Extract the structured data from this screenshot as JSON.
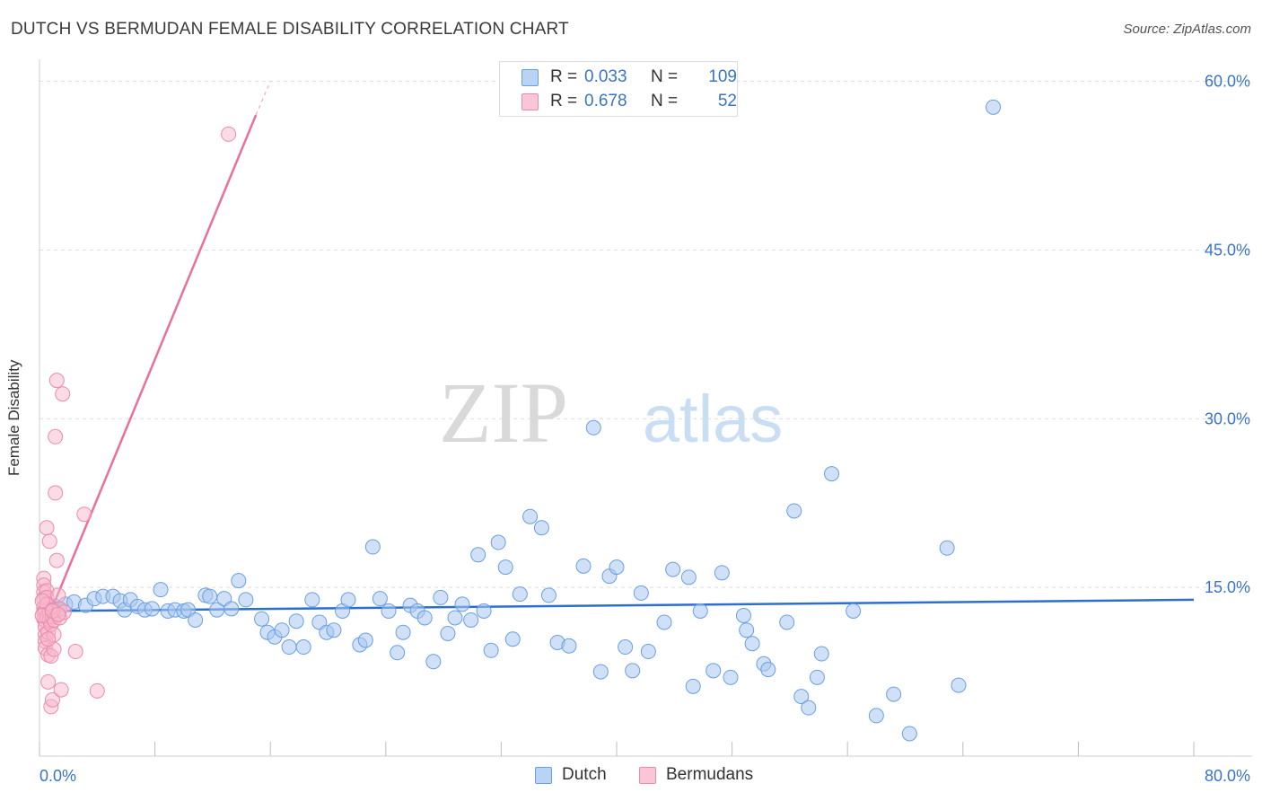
{
  "title": "DUTCH VS BERMUDAN FEMALE DISABILITY CORRELATION CHART",
  "source": "Source: ZipAtlas.com",
  "watermark": {
    "part1": "ZIP",
    "part2": "atlas"
  },
  "colors": {
    "dutch_fill": "#a9c9f0",
    "dutch_stroke": "#6a9fe0",
    "dutch_line": "#2d6fd0",
    "bermudan_fill": "#f7b8cb",
    "bermudan_stroke": "#ec8aab",
    "bermudan_line": "#e8709a",
    "tick_label": "#3a74c9",
    "grid": "#dddddd"
  },
  "legend_top": [
    {
      "r_label": "R =",
      "r_value": "0.033",
      "n_label": "N =",
      "n_value": "109"
    },
    {
      "r_label": "R =",
      "r_value": "0.678",
      "n_label": "N =",
      "n_value": "52"
    }
  ],
  "legend_bottom": [
    "Dutch",
    "Bermudans"
  ],
  "chart_data": {
    "type": "scatter",
    "title": "DUTCH VS BERMUDAN FEMALE DISABILITY CORRELATION CHART",
    "xlabel": "",
    "ylabel": "Female Disability",
    "xlim": [
      0,
      80
    ],
    "ylim": [
      0,
      61
    ],
    "x_tick_labels": [
      "0.0%",
      "80.0%"
    ],
    "y_ticks": [
      15,
      30,
      45,
      60
    ],
    "y_tick_labels": [
      "15.0%",
      "30.0%",
      "45.0%",
      "60.0%"
    ],
    "grid": true,
    "legend_position": "top-center",
    "series": [
      {
        "name": "Dutch",
        "r": 0.033,
        "n": 109,
        "trend": {
          "x": [
            0.5,
            80
          ],
          "y": [
            12.9,
            13.9
          ]
        },
        "points": [
          [
            0.5,
            13.5
          ],
          [
            0.7,
            13.0
          ],
          [
            0.9,
            12.7
          ],
          [
            1.1,
            13.3
          ],
          [
            1.4,
            13.0
          ],
          [
            1.8,
            13.5
          ],
          [
            2.4,
            13.7
          ],
          [
            3.2,
            13.4
          ],
          [
            3.8,
            14.0
          ],
          [
            4.4,
            14.2
          ],
          [
            5.1,
            14.2
          ],
          [
            5.6,
            13.8
          ],
          [
            5.9,
            13.0
          ],
          [
            6.3,
            13.9
          ],
          [
            6.8,
            13.3
          ],
          [
            7.3,
            13.0
          ],
          [
            7.8,
            13.1
          ],
          [
            8.4,
            14.8
          ],
          [
            8.9,
            12.9
          ],
          [
            9.4,
            13.0
          ],
          [
            10.0,
            12.9
          ],
          [
            10.3,
            13.0
          ],
          [
            10.8,
            12.1
          ],
          [
            11.5,
            14.3
          ],
          [
            11.8,
            14.2
          ],
          [
            12.3,
            13.0
          ],
          [
            12.8,
            14.0
          ],
          [
            13.3,
            13.1
          ],
          [
            13.8,
            15.6
          ],
          [
            14.3,
            13.9
          ],
          [
            15.4,
            12.2
          ],
          [
            15.8,
            11.0
          ],
          [
            16.3,
            10.6
          ],
          [
            16.8,
            11.2
          ],
          [
            17.3,
            9.7
          ],
          [
            17.8,
            12.0
          ],
          [
            18.3,
            9.7
          ],
          [
            18.9,
            13.9
          ],
          [
            19.4,
            11.9
          ],
          [
            19.9,
            11.0
          ],
          [
            20.4,
            11.2
          ],
          [
            21.0,
            12.9
          ],
          [
            21.4,
            13.9
          ],
          [
            22.2,
            9.9
          ],
          [
            22.6,
            10.3
          ],
          [
            23.1,
            18.6
          ],
          [
            23.6,
            14.0
          ],
          [
            24.2,
            12.9
          ],
          [
            24.8,
            9.2
          ],
          [
            25.2,
            11.0
          ],
          [
            25.7,
            13.4
          ],
          [
            26.2,
            12.9
          ],
          [
            26.7,
            12.3
          ],
          [
            27.3,
            8.4
          ],
          [
            27.8,
            14.1
          ],
          [
            28.3,
            10.9
          ],
          [
            28.8,
            12.3
          ],
          [
            29.3,
            13.5
          ],
          [
            29.9,
            12.1
          ],
          [
            30.4,
            17.9
          ],
          [
            30.8,
            12.9
          ],
          [
            31.3,
            9.4
          ],
          [
            31.8,
            19.0
          ],
          [
            32.3,
            16.8
          ],
          [
            32.8,
            10.4
          ],
          [
            33.3,
            14.4
          ],
          [
            34.0,
            21.3
          ],
          [
            34.8,
            20.3
          ],
          [
            35.3,
            14.3
          ],
          [
            35.9,
            10.1
          ],
          [
            36.7,
            9.8
          ],
          [
            37.7,
            16.9
          ],
          [
            38.4,
            29.2
          ],
          [
            38.9,
            7.5
          ],
          [
            39.5,
            16.0
          ],
          [
            40.0,
            16.8
          ],
          [
            40.6,
            9.7
          ],
          [
            41.1,
            7.6
          ],
          [
            41.7,
            14.5
          ],
          [
            42.2,
            9.3
          ],
          [
            43.3,
            11.9
          ],
          [
            43.9,
            16.6
          ],
          [
            45.0,
            15.9
          ],
          [
            45.3,
            6.2
          ],
          [
            45.8,
            12.9
          ],
          [
            46.7,
            7.6
          ],
          [
            47.3,
            16.3
          ],
          [
            47.9,
            7.0
          ],
          [
            48.8,
            12.5
          ],
          [
            49.0,
            11.2
          ],
          [
            49.4,
            10.0
          ],
          [
            50.2,
            8.2
          ],
          [
            50.5,
            7.7
          ],
          [
            51.8,
            11.9
          ],
          [
            52.3,
            21.8
          ],
          [
            52.8,
            5.3
          ],
          [
            53.3,
            4.3
          ],
          [
            53.9,
            7.0
          ],
          [
            54.2,
            9.1
          ],
          [
            54.9,
            25.1
          ],
          [
            56.4,
            12.9
          ],
          [
            58.0,
            3.6
          ],
          [
            59.2,
            5.5
          ],
          [
            60.3,
            2.0
          ],
          [
            62.9,
            18.5
          ],
          [
            63.7,
            6.3
          ],
          [
            66.1,
            57.7
          ]
        ]
      },
      {
        "name": "Bermudans",
        "r": 0.678,
        "n": 52,
        "trend": {
          "x": [
            0.5,
            15.0
          ],
          "y": [
            12.0,
            57.0
          ]
        },
        "trend_dashed": {
          "x": [
            15.0,
            16.0
          ],
          "y": [
            57.0,
            60.0
          ]
        },
        "points": [
          [
            0.3,
            15.8
          ],
          [
            0.3,
            15.2
          ],
          [
            0.3,
            14.6
          ],
          [
            0.3,
            14.0
          ],
          [
            0.3,
            13.2
          ],
          [
            0.3,
            12.8
          ],
          [
            0.3,
            12.2
          ],
          [
            0.4,
            13.0
          ],
          [
            0.4,
            12.0
          ],
          [
            0.4,
            11.5
          ],
          [
            0.4,
            10.8
          ],
          [
            0.4,
            10.2
          ],
          [
            0.4,
            9.6
          ],
          [
            0.5,
            20.3
          ],
          [
            0.5,
            14.7
          ],
          [
            0.5,
            14.1
          ],
          [
            0.5,
            13.5
          ],
          [
            0.5,
            12.4
          ],
          [
            0.6,
            6.6
          ],
          [
            0.6,
            9.0
          ],
          [
            0.6,
            11.0
          ],
          [
            0.7,
            19.1
          ],
          [
            0.7,
            12.7
          ],
          [
            0.7,
            12.1
          ],
          [
            0.8,
            4.4
          ],
          [
            0.8,
            8.9
          ],
          [
            0.8,
            11.7
          ],
          [
            0.9,
            12.4
          ],
          [
            0.9,
            13.0
          ],
          [
            0.9,
            5.0
          ],
          [
            1.0,
            9.5
          ],
          [
            1.0,
            10.8
          ],
          [
            1.0,
            12.1
          ],
          [
            1.1,
            23.4
          ],
          [
            1.1,
            28.4
          ],
          [
            1.2,
            17.4
          ],
          [
            1.2,
            33.4
          ],
          [
            1.3,
            14.3
          ],
          [
            1.4,
            13.1
          ],
          [
            1.4,
            12.3
          ],
          [
            1.5,
            5.9
          ],
          [
            1.6,
            32.2
          ],
          [
            1.7,
            12.8
          ],
          [
            2.5,
            9.3
          ],
          [
            3.1,
            21.5
          ],
          [
            4.0,
            5.8
          ],
          [
            13.1,
            55.3
          ],
          [
            0.2,
            12.5
          ],
          [
            0.2,
            13.8
          ],
          [
            0.6,
            10.4
          ],
          [
            0.9,
            12.9
          ],
          [
            1.3,
            12.6
          ]
        ]
      }
    ]
  }
}
